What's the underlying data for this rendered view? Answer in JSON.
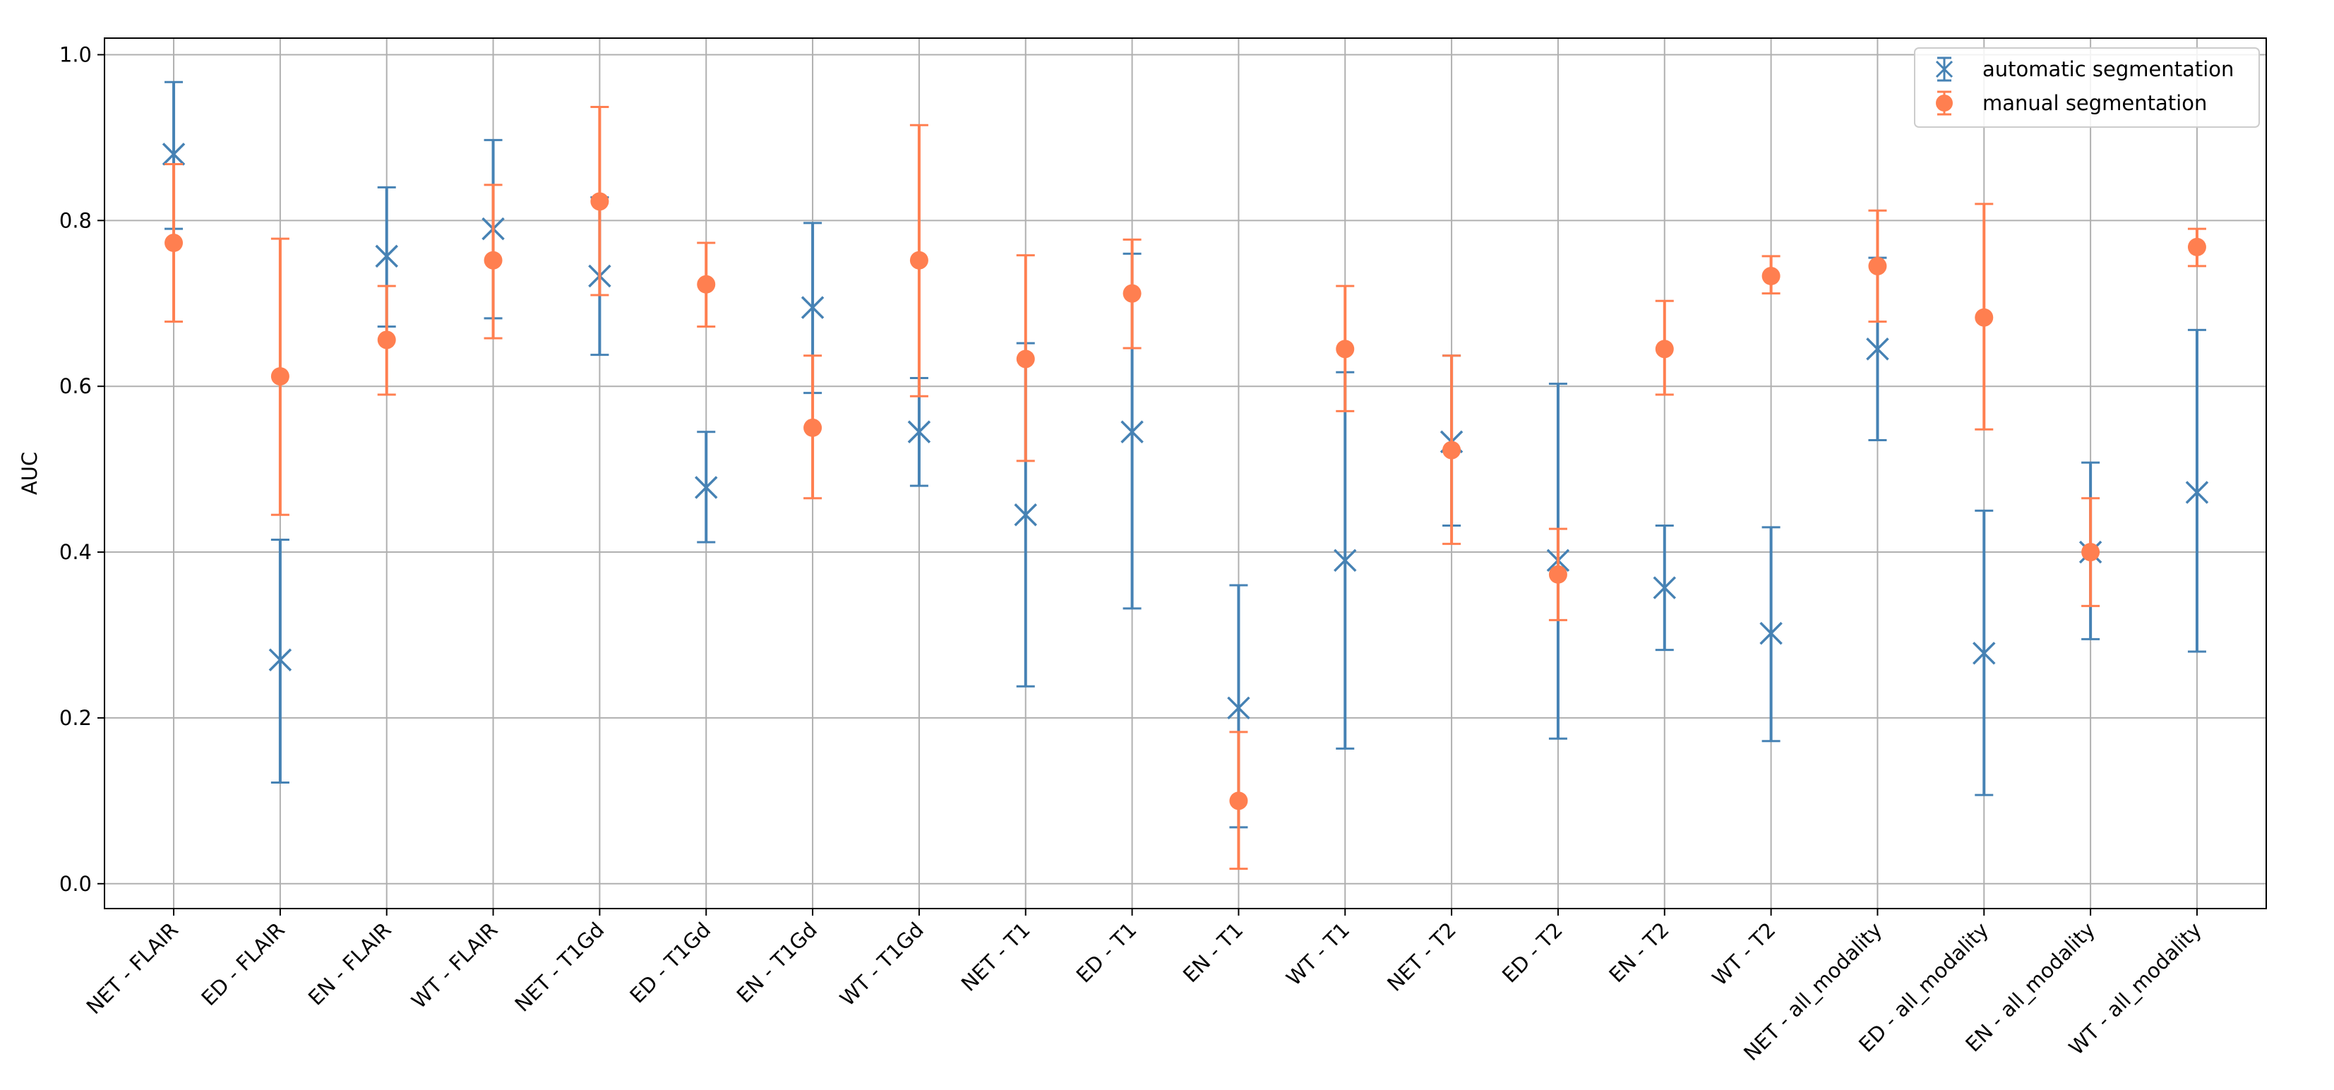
{
  "chart_data": {
    "type": "scatter",
    "title": "",
    "xlabel": "",
    "ylabel": "AUC",
    "ylim": [
      -0.03,
      1.02
    ],
    "yticks": [
      0.0,
      0.2,
      0.4,
      0.6,
      0.8,
      1.0
    ],
    "ytick_labels": [
      "0.0",
      "0.2",
      "0.4",
      "0.6",
      "0.8",
      "1.0"
    ],
    "grid": true,
    "legend_position": "top-right",
    "categories": [
      "NET - FLAIR",
      "ED - FLAIR",
      "EN - FLAIR",
      "WT - FLAIR",
      "NET - T1Gd",
      "ED - T1Gd",
      "EN - T1Gd",
      "WT - T1Gd",
      "NET - T1",
      "ED - T1",
      "EN - T1",
      "WT - T1",
      "NET - T2",
      "ED - T2",
      "EN - T2",
      "WT - T2",
      "NET - all_modality",
      "ED - all_modality",
      "EN - all_modality",
      "WT - all_modality"
    ],
    "series": [
      {
        "name": "automatic segmentation",
        "marker": "x",
        "color": "#4682b4",
        "values": [
          0.88,
          0.27,
          0.757,
          0.79,
          0.733,
          0.478,
          0.695,
          0.545,
          0.445,
          0.545,
          0.212,
          0.39,
          0.533,
          0.39,
          0.357,
          0.302,
          0.645,
          0.278,
          0.4,
          0.472
        ],
        "error_low": [
          0.79,
          0.122,
          0.672,
          0.682,
          0.638,
          0.412,
          0.592,
          0.48,
          0.238,
          0.332,
          0.068,
          0.163,
          0.432,
          0.175,
          0.282,
          0.172,
          0.535,
          0.107,
          0.295,
          0.28
        ],
        "error_high": [
          0.967,
          0.415,
          0.84,
          0.897,
          0.828,
          0.545,
          0.797,
          0.61,
          0.652,
          0.76,
          0.36,
          0.617,
          0.637,
          0.603,
          0.432,
          0.43,
          0.755,
          0.45,
          0.508,
          0.668
        ]
      },
      {
        "name": "manual segmentation",
        "marker": "o",
        "color": "#ff7f50",
        "values": [
          0.773,
          0.612,
          0.656,
          0.752,
          0.823,
          0.723,
          0.55,
          0.752,
          0.633,
          0.712,
          0.1,
          0.645,
          0.523,
          0.373,
          0.645,
          0.733,
          0.745,
          0.683,
          0.4,
          0.768
        ],
        "error_low": [
          0.678,
          0.445,
          0.59,
          0.658,
          0.71,
          0.672,
          0.465,
          0.588,
          0.51,
          0.646,
          0.018,
          0.57,
          0.41,
          0.318,
          0.59,
          0.712,
          0.678,
          0.548,
          0.335,
          0.745
        ],
        "error_high": [
          0.868,
          0.778,
          0.721,
          0.843,
          0.937,
          0.773,
          0.637,
          0.915,
          0.758,
          0.777,
          0.183,
          0.721,
          0.637,
          0.428,
          0.703,
          0.757,
          0.812,
          0.82,
          0.465,
          0.79
        ]
      }
    ]
  }
}
